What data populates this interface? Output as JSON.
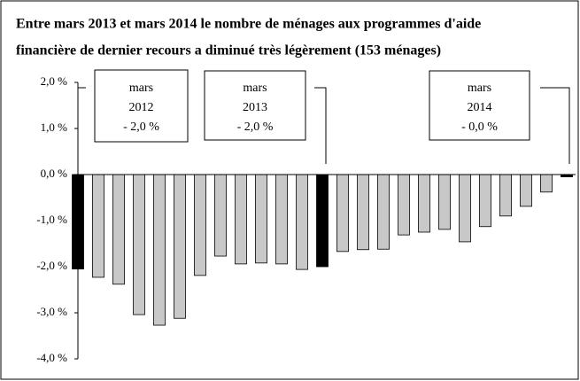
{
  "chart_data": {
    "type": "bar",
    "title": [
      "Entre mars 2013 et mars 2014 le nombre de ménages aux programmes d'aide",
      "financière de dernier recours a diminué très légèrement (153 ménages)"
    ],
    "categories": [
      null,
      null,
      null,
      null,
      null,
      null,
      null,
      null,
      null,
      null,
      null,
      null,
      null,
      null,
      null,
      null,
      null,
      null,
      null,
      null,
      null,
      null,
      null,
      null,
      null
    ],
    "values": [
      -2.05,
      -2.23,
      -2.38,
      -3.04,
      -3.27,
      -3.12,
      -2.19,
      -1.77,
      -1.94,
      -1.92,
      -1.94,
      -2.06,
      -2.0,
      -1.67,
      -1.63,
      -1.62,
      -1.31,
      -1.25,
      -1.19,
      -1.46,
      -1.13,
      -0.9,
      -0.69,
      -0.38,
      -0.05
    ],
    "colors": [
      "#000000",
      "#c8c8c8",
      "#c8c8c8",
      "#c8c8c8",
      "#c8c8c8",
      "#c8c8c8",
      "#c8c8c8",
      "#c8c8c8",
      "#c8c8c8",
      "#c8c8c8",
      "#c8c8c8",
      "#c8c8c8",
      "#000000",
      "#c8c8c8",
      "#c8c8c8",
      "#c8c8c8",
      "#c8c8c8",
      "#c8c8c8",
      "#c8c8c8",
      "#c8c8c8",
      "#c8c8c8",
      "#c8c8c8",
      "#c8c8c8",
      "#c8c8c8",
      "#000000"
    ],
    "ylim": [
      -4.0,
      2.0
    ],
    "yticks": [
      {
        "value": -4.0,
        "label": "-4,0 %"
      },
      {
        "value": -3.0,
        "label": "-3,0 %"
      },
      {
        "value": -2.0,
        "label": "-2,0 %"
      },
      {
        "value": -1.0,
        "label": "-1,0 %"
      },
      {
        "value": 0.0,
        "label": "0,0 %"
      },
      {
        "value": 1.0,
        "label": "1,0 %"
      },
      {
        "value": 2.0,
        "label": "2,0 %"
      }
    ],
    "annotations": [
      {
        "lines": [
          "mars",
          "2012",
          "- 2,0 %"
        ]
      },
      {
        "lines": [
          "mars",
          "2013",
          "- 2,0 %"
        ]
      },
      {
        "lines": [
          "mars",
          "2014",
          "- 0,0 %"
        ]
      }
    ]
  }
}
